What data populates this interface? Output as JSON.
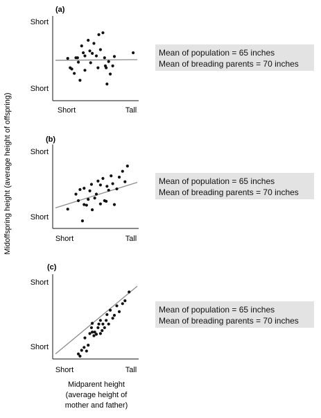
{
  "y_axis_title": "Midoffspring height (average height of offspring)",
  "x_axis_title_lines": [
    "Midparent height",
    "(average height of",
    "mother and father)"
  ],
  "colors": {
    "points": "#111111",
    "regression_line": "#8c8c8c",
    "axis": "#111111",
    "info_box": "#e3e3e3"
  },
  "chart_data": [
    {
      "type": "scatter",
      "label": "(a)",
      "y_top_label": "Short",
      "y_bottom_label": "Short",
      "x_left_label": "Short",
      "x_right_label": "Tall",
      "xlim": [
        0,
        1
      ],
      "ylim": [
        0,
        1
      ],
      "note_lines": [
        "Mean of population = 65 inches",
        "Mean of breading parents = 70 inches"
      ],
      "regression": {
        "x": [
          0.0,
          1.0
        ],
        "y": [
          0.48,
          0.49
        ]
      },
      "points": {
        "x": [
          0.2,
          0.25,
          0.28,
          0.32,
          0.34,
          0.36,
          0.36,
          0.4,
          0.42,
          0.43,
          0.45,
          0.47,
          0.5,
          0.53,
          0.55,
          0.58,
          0.6,
          0.62,
          0.63,
          0.65,
          0.67,
          0.7,
          0.72,
          0.15,
          0.18,
          0.23,
          0.27,
          0.3,
          0.52,
          0.61,
          0.95
        ],
        "y": [
          0.34,
          0.52,
          0.45,
          0.71,
          0.6,
          0.55,
          0.32,
          0.8,
          0.63,
          0.44,
          0.59,
          0.75,
          0.55,
          0.89,
          0.65,
          0.92,
          0.52,
          0.36,
          0.1,
          0.46,
          0.26,
          0.39,
          0.54,
          0.51,
          0.36,
          0.27,
          0.52,
          0.16,
          0.36,
          0.39,
          0.6
        ]
      }
    },
    {
      "type": "scatter",
      "label": "(b)",
      "y_top_label": "Short",
      "y_bottom_label": "Short",
      "x_left_label": "Short",
      "x_right_label": "Tall",
      "xlim": [
        0,
        1
      ],
      "ylim": [
        0,
        1
      ],
      "note_lines": [
        "Mean of population = 65 inches",
        "Mean of breading parents = 70 inches"
      ],
      "regression": {
        "x": [
          0.0,
          1.0
        ],
        "y": [
          0.22,
          0.61
        ]
      },
      "points": {
        "x": [
          0.15,
          0.25,
          0.28,
          0.3,
          0.33,
          0.35,
          0.35,
          0.38,
          0.4,
          0.42,
          0.44,
          0.45,
          0.48,
          0.5,
          0.52,
          0.55,
          0.55,
          0.58,
          0.6,
          0.62,
          0.63,
          0.65,
          0.68,
          0.7,
          0.72,
          0.75,
          0.78,
          0.82,
          0.85,
          0.88
        ],
        "y": [
          0.2,
          0.43,
          0.33,
          0.5,
          0.02,
          0.27,
          0.52,
          0.26,
          0.35,
          0.48,
          0.58,
          0.19,
          0.37,
          0.43,
          0.63,
          0.57,
          0.28,
          0.67,
          0.33,
          0.32,
          0.55,
          0.49,
          0.71,
          0.59,
          0.27,
          0.51,
          0.69,
          0.78,
          0.62,
          0.86
        ]
      }
    },
    {
      "type": "scatter",
      "label": "(c)",
      "y_top_label": "Short",
      "y_bottom_label": "Short",
      "x_left_label": "Short",
      "x_right_label": "Tall",
      "xlim": [
        0,
        1
      ],
      "ylim": [
        0,
        1
      ],
      "note_lines": [
        "Mean of population = 65 inches",
        "Mean of breading parents = 70 inches"
      ],
      "regression": {
        "x": [
          0.0,
          1.0
        ],
        "y": [
          0.05,
          0.98
        ]
      },
      "points": {
        "x": [
          0.28,
          0.3,
          0.32,
          0.35,
          0.36,
          0.38,
          0.4,
          0.42,
          0.44,
          0.45,
          0.45,
          0.47,
          0.48,
          0.5,
          0.52,
          0.53,
          0.55,
          0.55,
          0.57,
          0.58,
          0.6,
          0.62,
          0.63,
          0.65,
          0.67,
          0.7,
          0.72,
          0.75,
          0.78,
          0.82,
          0.85,
          0.9
        ],
        "y": [
          0.05,
          0.02,
          0.1,
          0.14,
          0.27,
          0.09,
          0.17,
          0.33,
          0.41,
          0.35,
          0.47,
          0.3,
          0.35,
          0.32,
          0.41,
          0.46,
          0.33,
          0.51,
          0.37,
          0.46,
          0.41,
          0.51,
          0.59,
          0.46,
          0.65,
          0.54,
          0.58,
          0.71,
          0.63,
          0.74,
          0.78,
          0.9
        ]
      }
    }
  ]
}
